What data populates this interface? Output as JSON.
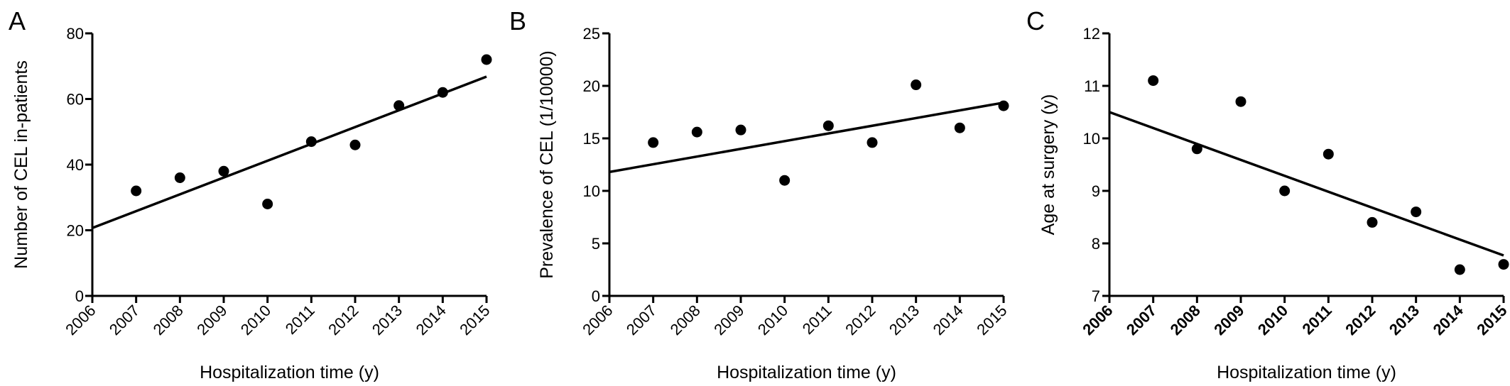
{
  "chart_data": [
    {
      "type": "scatter",
      "panel_label": "A",
      "xlabel": "Hospitalization time (y)",
      "ylabel": "Number of CEL in-patients",
      "x_ticks": [
        "2006",
        "2007",
        "2008",
        "2009",
        "2010",
        "2011",
        "2012",
        "2013",
        "2014",
        "2015"
      ],
      "y_ticks": [
        "0",
        "20",
        "40",
        "60",
        "80"
      ],
      "xlim": [
        2006,
        2015
      ],
      "ylim": [
        0,
        80
      ],
      "grid": false,
      "bold_x_ticks": false,
      "points": [
        {
          "x": 2007,
          "y": 32
        },
        {
          "x": 2008,
          "y": 36
        },
        {
          "x": 2009,
          "y": 38
        },
        {
          "x": 2010,
          "y": 28
        },
        {
          "x": 2011,
          "y": 47
        },
        {
          "x": 2012,
          "y": 46
        },
        {
          "x": 2013,
          "y": 58
        },
        {
          "x": 2014,
          "y": 62
        },
        {
          "x": 2015,
          "y": 72
        }
      ],
      "trend_line": [
        {
          "x": 2006,
          "y": 20.7
        },
        {
          "x": 2015,
          "y": 66.8
        }
      ]
    },
    {
      "type": "scatter",
      "panel_label": "B",
      "xlabel": "Hospitalization time (y)",
      "ylabel": "Prevalence of  CEL (1/10000)",
      "x_ticks": [
        "2006",
        "2007",
        "2008",
        "2009",
        "2010",
        "2011",
        "2012",
        "2013",
        "2014",
        "2015"
      ],
      "y_ticks": [
        "0",
        "5",
        "10",
        "15",
        "20",
        "25"
      ],
      "xlim": [
        2006,
        2015
      ],
      "ylim": [
        0,
        25
      ],
      "grid": false,
      "bold_x_ticks": false,
      "points": [
        {
          "x": 2007,
          "y": 14.6
        },
        {
          "x": 2008,
          "y": 15.6
        },
        {
          "x": 2009,
          "y": 15.8
        },
        {
          "x": 2010,
          "y": 11.0
        },
        {
          "x": 2011,
          "y": 16.2
        },
        {
          "x": 2012,
          "y": 14.6
        },
        {
          "x": 2013,
          "y": 20.1
        },
        {
          "x": 2014,
          "y": 16.0
        },
        {
          "x": 2015,
          "y": 18.1
        }
      ],
      "trend_line": [
        {
          "x": 2006,
          "y": 11.8
        },
        {
          "x": 2015,
          "y": 18.4
        }
      ]
    },
    {
      "type": "scatter",
      "panel_label": "C",
      "xlabel": "Hospitalization time (y)",
      "ylabel": "Age at surgery  (y)",
      "x_ticks": [
        "2006",
        "2007",
        "2008",
        "2009",
        "2010",
        "2011",
        "2012",
        "2013",
        "2014",
        "2015"
      ],
      "y_ticks": [
        "7",
        "8",
        "9",
        "10",
        "11",
        "12"
      ],
      "xlim": [
        2006,
        2015
      ],
      "ylim": [
        7,
        12
      ],
      "grid": false,
      "bold_x_ticks": true,
      "points": [
        {
          "x": 2007,
          "y": 11.1
        },
        {
          "x": 2008,
          "y": 9.8
        },
        {
          "x": 2009,
          "y": 10.7
        },
        {
          "x": 2010,
          "y": 9.0
        },
        {
          "x": 2011,
          "y": 9.7
        },
        {
          "x": 2012,
          "y": 8.4
        },
        {
          "x": 2013,
          "y": 8.6
        },
        {
          "x": 2014,
          "y": 7.5
        },
        {
          "x": 2015,
          "y": 7.6
        }
      ],
      "trend_line": [
        {
          "x": 2006,
          "y": 10.5
        },
        {
          "x": 2015,
          "y": 7.77
        }
      ]
    }
  ]
}
